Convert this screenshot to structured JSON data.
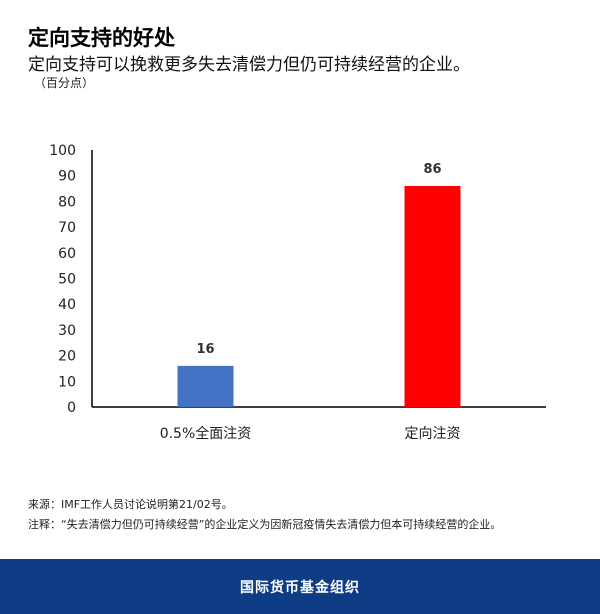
{
  "header": {
    "title": "定向支持的好处",
    "subtitle": "定向支持可以挽救更多失去清偿力但仍可持续经营的企业。",
    "unit": "（百分点）"
  },
  "chart_data": {
    "type": "bar",
    "categories": [
      "0.5%全面注资",
      "定向注资"
    ],
    "values": [
      16,
      86
    ],
    "data_labels": [
      "16",
      "86"
    ],
    "colors": [
      "#4472c4",
      "#ff0000"
    ],
    "ylim": [
      0,
      100
    ],
    "yticks": [
      0,
      10,
      20,
      30,
      40,
      50,
      60,
      70,
      80,
      90,
      100
    ],
    "grid": false,
    "xlabel": "",
    "ylabel": ""
  },
  "notes": {
    "source": "来源：IMF工作人员讨论说明第21/02号。",
    "note": "注释：“失去清偿力但仍可持续经营”的企业定义为因新冠疫情失去清偿力但本可持续经营的企业。"
  },
  "footer": {
    "org": "国际货币基金组织"
  }
}
